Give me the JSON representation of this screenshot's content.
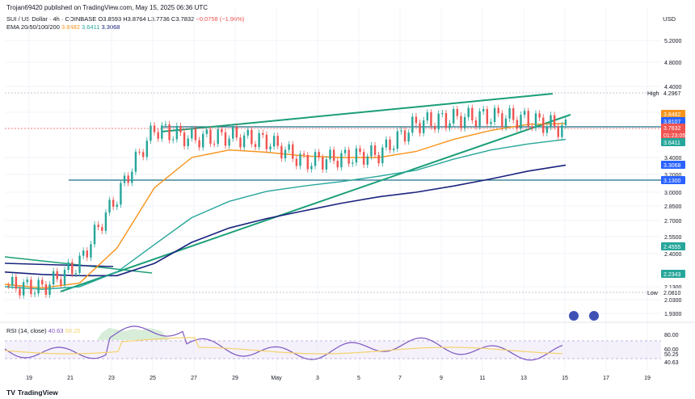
{
  "header": {
    "publish_line": "Trojan69420 published on TradingView.com, May 15, 2025 06:36 UTC",
    "symbol": "SUI / US Dollar · 4h · COINBASE",
    "open": "O3.8593",
    "high": "H3.8764",
    "low": "L3.7736",
    "close": "C3.7832",
    "change": "−0.0758 (−1.96%)",
    "ema_label": "EMA 20/50/100/200",
    "ema_values": [
      "3.8482",
      "3.6411",
      "3.3068"
    ],
    "currency": "USD"
  },
  "rsi": {
    "label": "RSI (14, close)",
    "value": "40.63",
    "ma_value": "50.25",
    "axis_labels": [
      "80.00",
      "60.00",
      "50.25",
      "40.63"
    ]
  },
  "brand": "TradingView",
  "colors": {
    "ema20": "#f7931a",
    "ema50": "#26a69a",
    "ema100": "#26a69a",
    "ema200": "#1a237e",
    "up": "#26a69a",
    "down": "#ef5350",
    "trendline": "#1b9e77",
    "hline": "#1f6f8b",
    "rsi": "#7e57c2",
    "rsi_ma": "#f5d26b"
  },
  "chart_data": {
    "type": "line",
    "title": "SUI / US Dollar · 4h · COINBASE",
    "xlabel": "",
    "ylabel": "USD",
    "ylim": [
      1.85,
      5.35
    ],
    "y_scale": "log",
    "x_ticks": [
      "19",
      "21",
      "23",
      "25",
      "27",
      "29",
      "May",
      "3",
      "5",
      "7",
      "9",
      "11",
      "13",
      "15",
      "17",
      "19"
    ],
    "y_ticks": [
      "5.2000",
      "4.8000",
      "4.4000",
      "4.0000",
      "3.4000",
      "3.2000",
      "3.0000",
      "2.8500",
      "2.7000",
      "2.5500",
      "2.4000",
      "2.1300",
      "2.0300",
      "1.9300"
    ],
    "price_tags": [
      {
        "label": "High",
        "value": "4.2967"
      },
      {
        "label": "",
        "value": "3.8482"
      },
      {
        "label": "",
        "value": "3.8107"
      },
      {
        "label": "",
        "value": "3.7832"
      },
      {
        "label": "",
        "value": "01:23:05"
      },
      {
        "label": "",
        "value": "3.6411"
      },
      {
        "label": "",
        "value": "3.3068"
      },
      {
        "label": "",
        "value": "3.1300"
      },
      {
        "label": "",
        "value": "2.4555"
      },
      {
        "label": "",
        "value": "2.2343"
      },
      {
        "label": "Low",
        "value": "2.0810"
      }
    ],
    "x": [
      0,
      2,
      4,
      6,
      8,
      10,
      12,
      14,
      16,
      18,
      20,
      22,
      24,
      26,
      28,
      30
    ],
    "series": [
      {
        "name": "Price (close)",
        "values": [
          2.14,
          2.12,
          2.32,
          2.95,
          3.78,
          3.65,
          3.68,
          3.62,
          3.35,
          3.4,
          3.45,
          3.85,
          3.92,
          3.95,
          3.9,
          3.78
        ]
      },
      {
        "name": "EMA 20",
        "values": [
          2.15,
          2.12,
          2.16,
          2.45,
          3.05,
          3.4,
          3.5,
          3.47,
          3.42,
          3.4,
          3.4,
          3.48,
          3.64,
          3.76,
          3.84,
          3.85
        ]
      },
      {
        "name": "EMA 50",
        "values": [
          2.13,
          2.11,
          2.13,
          2.25,
          2.48,
          2.73,
          2.9,
          3.01,
          3.07,
          3.12,
          3.18,
          3.25,
          3.38,
          3.5,
          3.58,
          3.64
        ]
      },
      {
        "name": "EMA 200",
        "values": [
          2.25,
          2.23,
          2.22,
          2.22,
          2.32,
          2.5,
          2.63,
          2.72,
          2.8,
          2.88,
          2.95,
          3.0,
          3.07,
          3.15,
          3.24,
          3.31
        ]
      }
    ],
    "annotations": [
      "Rising wedge trendlines",
      "Horizontal resistance ~3.81",
      "Horizontal support ~3.13",
      "High 4.2967",
      "Low 2.0810"
    ]
  }
}
